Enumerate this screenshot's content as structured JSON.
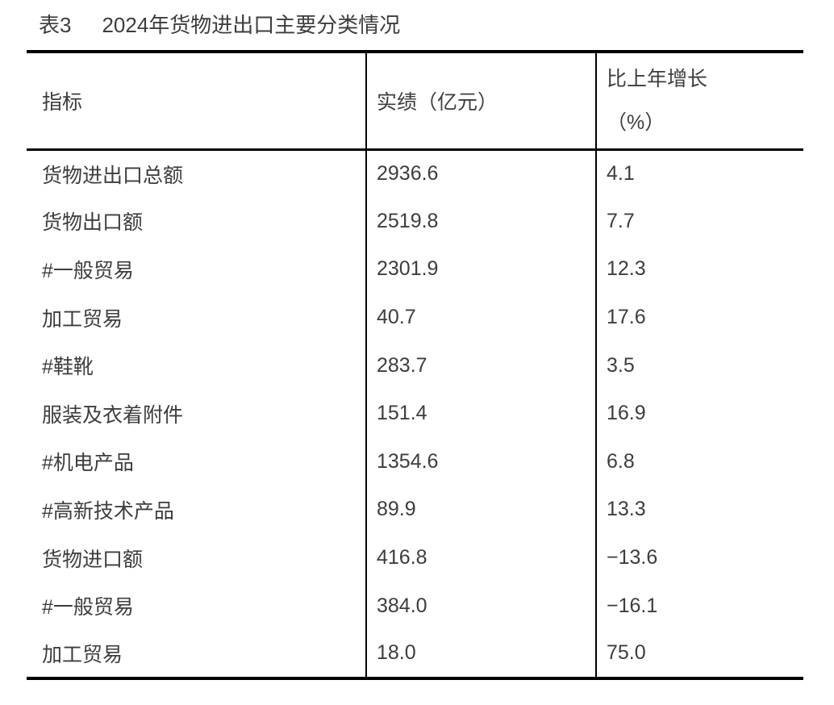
{
  "title": {
    "prefix": "表3",
    "text": "2024年货物进出口主要分类情况"
  },
  "colors": {
    "text": "#3d3d3d",
    "border": "#000000",
    "background": "#ffffff"
  },
  "table": {
    "columns": [
      {
        "label": "指标"
      },
      {
        "label": "实绩（亿元）"
      },
      {
        "label": "比上年增长\n（%）"
      }
    ],
    "rows": [
      {
        "indicator": "货物进出口总额",
        "value": "2936.6",
        "growth": "4.1"
      },
      {
        "indicator": "货物出口额",
        "value": "2519.8",
        "growth": "7.7"
      },
      {
        "indicator": "#一般贸易",
        "value": "2301.9",
        "growth": "12.3"
      },
      {
        "indicator": "加工贸易",
        "value": "40.7",
        "growth": "17.6"
      },
      {
        "indicator": "#鞋靴",
        "value": "283.7",
        "growth": "3.5"
      },
      {
        "indicator": "服装及衣着附件",
        "value": "151.4",
        "growth": "16.9"
      },
      {
        "indicator": "#机电产品",
        "value": "1354.6",
        "growth": "6.8"
      },
      {
        "indicator": "#高新技术产品",
        "value": "89.9",
        "growth": "13.3"
      },
      {
        "indicator": "货物进口额",
        "value": "416.8",
        "growth": "−13.6"
      },
      {
        "indicator": "#一般贸易",
        "value": "384.0",
        "growth": "−16.1"
      },
      {
        "indicator": "加工贸易",
        "value": "18.0",
        "growth": "75.0"
      }
    ]
  },
  "chart_data": {
    "type": "table",
    "title": "表3　2024年货物进出口主要分类情况",
    "columns": [
      "指标",
      "实绩（亿元）",
      "比上年增长（%）"
    ],
    "rows": [
      [
        "货物进出口总额",
        2936.6,
        4.1
      ],
      [
        "货物出口额",
        2519.8,
        7.7
      ],
      [
        "#一般贸易",
        2301.9,
        12.3
      ],
      [
        "加工贸易",
        40.7,
        17.6
      ],
      [
        "#鞋靴",
        283.7,
        3.5
      ],
      [
        "服装及衣着附件",
        151.4,
        16.9
      ],
      [
        "#机电产品",
        1354.6,
        6.8
      ],
      [
        "#高新技术产品",
        89.9,
        13.3
      ],
      [
        "货物进口额",
        416.8,
        -13.6
      ],
      [
        "#一般贸易",
        384.0,
        -16.1
      ],
      [
        "加工贸易",
        18.0,
        75.0
      ]
    ]
  }
}
